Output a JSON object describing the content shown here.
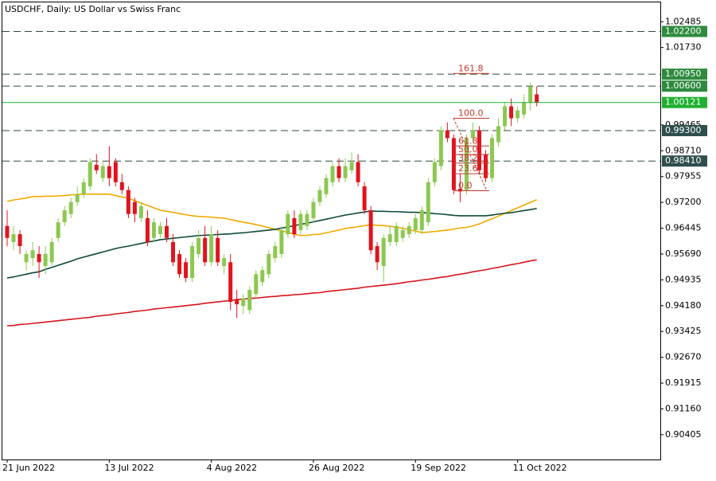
{
  "chart_data": {
    "type": "candlestick",
    "title": "USDCHF, Daily:  US Dollar vs Swiss Franc",
    "categories": [
      "21 Jun 2022",
      null,
      null,
      null,
      null,
      null,
      null,
      null,
      null,
      null,
      null,
      null,
      null,
      null,
      null,
      null,
      "13 Jul 2022",
      null,
      null,
      null,
      null,
      null,
      null,
      null,
      null,
      null,
      null,
      null,
      null,
      null,
      null,
      null,
      "4 Aug 2022",
      null,
      null,
      null,
      null,
      null,
      null,
      null,
      null,
      null,
      null,
      null,
      null,
      null,
      null,
      null,
      "26 Aug 2022",
      null,
      null,
      null,
      null,
      null,
      null,
      null,
      null,
      null,
      null,
      null,
      null,
      null,
      null,
      null,
      "19 Sep 2022",
      null,
      null,
      null,
      null,
      null,
      null,
      null,
      null,
      null,
      null,
      null,
      null,
      null,
      null,
      null,
      "11 Oct 2022",
      null,
      null,
      null
    ],
    "open": [
      0.9651,
      0.9604,
      0.9627,
      0.9545,
      0.9557,
      0.9569,
      0.9534,
      0.9545,
      0.9616,
      0.9662,
      0.9686,
      0.9721,
      0.9744,
      0.9767,
      0.983,
      0.9791,
      0.9826,
      0.9838,
      0.9779,
      0.9756,
      0.9721,
      0.9674,
      0.9674,
      0.9616,
      0.9627,
      0.9651,
      0.9604,
      0.9569,
      0.9545,
      0.9499,
      0.9569,
      0.9616,
      0.9545,
      0.9616,
      0.9534,
      0.9545,
      0.9436,
      0.9417,
      0.9405,
      0.9452,
      0.9487,
      0.951,
      0.9557,
      0.9569,
      0.9627,
      0.9674,
      0.9639,
      0.9651,
      0.9674,
      0.9721,
      0.9744,
      0.9779,
      0.9826,
      0.9791,
      0.9814,
      0.9838,
      0.9767,
      0.9697,
      0.9592,
      0.9534,
      0.9604,
      0.9604,
      0.9616,
      0.9627,
      0.9639,
      0.9639,
      0.9662,
      0.9779,
      0.9826,
      0.9931,
      0.9908,
      0.976,
      0.9756,
      0.9908,
      0.9931,
      0.9861,
      0.9791,
      0.9896,
      0.9943,
      1.0001,
      0.9966,
      0.9977,
      1.0013,
      1.0036
    ],
    "high": [
      0.9697,
      0.9651,
      0.9639,
      0.958,
      0.9604,
      0.9592,
      0.9592,
      0.9616,
      0.9674,
      0.9709,
      0.9733,
      0.9767,
      0.9791,
      0.9849,
      0.9861,
      0.9838,
      0.9884,
      0.9849,
      0.9803,
      0.9767,
      0.9733,
      0.9721,
      0.9697,
      0.9674,
      0.9662,
      0.9674,
      0.9627,
      0.958,
      0.9557,
      0.9604,
      0.9639,
      0.9651,
      0.9651,
      0.9639,
      0.9569,
      0.9569,
      0.9464,
      0.9452,
      0.9475,
      0.9522,
      0.9534,
      0.958,
      0.9604,
      0.9651,
      0.9697,
      0.9697,
      0.9697,
      0.9697,
      0.9733,
      0.9767,
      0.9803,
      0.9838,
      0.9849,
      0.9849,
      0.9866,
      0.9861,
      0.9779,
      0.9709,
      0.9604,
      0.9627,
      0.9651,
      0.9662,
      0.9651,
      0.9662,
      0.9686,
      0.9709,
      0.9791,
      0.9849,
      0.9943,
      0.9954,
      0.9919,
      0.9803,
      0.9919,
      0.9954,
      0.9943,
      0.9873,
      0.9919,
      0.9966,
      1.0013,
      1.0024,
      1.0001,
      1.0036,
      1.0071,
      1.0059
    ],
    "low": [
      0.9592,
      0.958,
      0.9569,
      0.9522,
      0.9534,
      0.9499,
      0.951,
      0.9534,
      0.9604,
      0.9651,
      0.9674,
      0.9709,
      0.9733,
      0.9756,
      0.9803,
      0.9779,
      0.9767,
      0.9767,
      0.9744,
      0.9674,
      0.9662,
      0.9662,
      0.9592,
      0.9604,
      0.9616,
      0.9604,
      0.9534,
      0.9499,
      0.9487,
      0.9487,
      0.9557,
      0.9534,
      0.9534,
      0.9534,
      0.951,
      0.9405,
      0.9382,
      0.9394,
      0.9394,
      0.944,
      0.9475,
      0.9499,
      0.9545,
      0.9557,
      0.9616,
      0.9616,
      0.9627,
      0.9639,
      0.9662,
      0.9709,
      0.9733,
      0.9767,
      0.9779,
      0.9779,
      0.9803,
      0.9767,
      0.9686,
      0.9569,
      0.9522,
      0.9487,
      0.9592,
      0.9592,
      0.9604,
      0.9616,
      0.9627,
      0.9627,
      0.9651,
      0.9767,
      0.9814,
      0.9896,
      0.9744,
      0.9721,
      0.9744,
      0.9896,
      0.9803,
      0.9779,
      0.9779,
      0.9884,
      0.9931,
      0.9943,
      0.9954,
      0.9966,
      0.9989,
      1.0001
    ],
    "close": [
      0.9616,
      0.9627,
      0.9592,
      0.9569,
      0.958,
      0.9545,
      0.9569,
      0.9604,
      0.9662,
      0.9697,
      0.9721,
      0.9744,
      0.9779,
      0.9838,
      0.9814,
      0.9826,
      0.9791,
      0.9779,
      0.9756,
      0.9686,
      0.9686,
      0.9709,
      0.9604,
      0.9662,
      0.9651,
      0.9616,
      0.9545,
      0.951,
      0.9499,
      0.9592,
      0.9616,
      0.9545,
      0.9627,
      0.9545,
      0.9557,
      0.9429,
      0.9422,
      0.944,
      0.9464,
      0.951,
      0.9522,
      0.9569,
      0.9592,
      0.9639,
      0.9686,
      0.9627,
      0.9686,
      0.9686,
      0.9721,
      0.9756,
      0.9791,
      0.9826,
      0.9791,
      0.9826,
      0.9838,
      0.9779,
      0.9697,
      0.958,
      0.9545,
      0.9616,
      0.9627,
      0.9651,
      0.9639,
      0.9651,
      0.9674,
      0.9697,
      0.9779,
      0.9838,
      0.9931,
      0.9908,
      0.9756,
      0.9752,
      0.9908,
      0.9931,
      0.9814,
      0.9791,
      0.9908,
      0.9943,
      1.0001,
      0.9966,
      0.9989,
      1.0013,
      1.0059,
      1.0012
    ],
    "up_color": "#8cc850",
    "down_color": "#e0141e",
    "lines": [
      {
        "color": "#f2a900",
        "values": [
          0.9723,
          0.9727,
          0.973,
          0.9733,
          0.9737,
          0.9737,
          0.9738,
          0.9738,
          0.9739,
          0.974,
          0.9742,
          0.9743,
          0.9744,
          0.9744,
          0.9744,
          0.9744,
          0.9744,
          0.974,
          0.9736,
          0.9732,
          0.9725,
          0.9718,
          0.9711,
          0.9704,
          0.9697,
          0.9694,
          0.9691,
          0.9687,
          0.9684,
          0.9681,
          0.9679,
          0.9678,
          0.9677,
          0.9675,
          0.9674,
          0.967,
          0.9666,
          0.9662,
          0.9659,
          0.9655,
          0.9651,
          0.9646,
          0.9641,
          0.9637,
          0.9632,
          0.9627,
          0.9623,
          0.9624,
          0.9626,
          0.9627,
          0.9631,
          0.9635,
          0.9639,
          0.9644,
          0.9646,
          0.9649,
          0.9652,
          0.9655,
          0.9653,
          0.9652,
          0.965,
          0.9648,
          0.9644,
          0.964,
          0.9636,
          0.9632,
          0.9633,
          0.9635,
          0.9637,
          0.9639,
          0.9642,
          0.9645,
          0.9647,
          0.9651,
          0.9657,
          0.9665,
          0.9672,
          0.968,
          0.9688,
          0.9696,
          0.9704,
          0.9712,
          0.972,
          0.9728
        ]
      },
      {
        "color": "#0f4a3a",
        "values": [
          0.9499,
          0.9502,
          0.9506,
          0.951,
          0.9514,
          0.9517,
          0.9524,
          0.953,
          0.9536,
          0.9542,
          0.9548,
          0.9555,
          0.956,
          0.9565,
          0.957,
          0.9575,
          0.958,
          0.9585,
          0.9589,
          0.9592,
          0.9596,
          0.96,
          0.9604,
          0.9607,
          0.9611,
          0.9613,
          0.9615,
          0.9617,
          0.9619,
          0.9621,
          0.9623,
          0.9624,
          0.9625,
          0.9626,
          0.9627,
          0.9628,
          0.963,
          0.9631,
          0.9633,
          0.9635,
          0.9637,
          0.9639,
          0.9641,
          0.9645,
          0.9648,
          0.9652,
          0.9656,
          0.9659,
          0.9663,
          0.9667,
          0.9671,
          0.9675,
          0.9679,
          0.9683,
          0.9686,
          0.9689,
          0.9692,
          0.9695,
          0.9694,
          0.9694,
          0.9693,
          0.9693,
          0.9692,
          0.9691,
          0.9691,
          0.969,
          0.9689,
          0.9687,
          0.9686,
          0.9684,
          0.9682,
          0.9681,
          0.9681,
          0.9681,
          0.9681,
          0.9681,
          0.9683,
          0.9686,
          0.9688,
          0.969,
          0.9693,
          0.9696,
          0.9699,
          0.9702
        ]
      },
      {
        "color": "#d4141c",
        "values": [
          0.9359,
          0.936,
          0.9363,
          0.9364,
          0.9366,
          0.9368,
          0.937,
          0.9372,
          0.9374,
          0.9376,
          0.9378,
          0.938,
          0.9382,
          0.9384,
          0.9387,
          0.9389,
          0.9391,
          0.9394,
          0.9396,
          0.9398,
          0.9401,
          0.9403,
          0.9405,
          0.9408,
          0.941,
          0.9412,
          0.9414,
          0.9416,
          0.9418,
          0.942,
          0.9422,
          0.9425,
          0.9427,
          0.9429,
          0.9431,
          0.9433,
          0.9436,
          0.9437,
          0.9439,
          0.944,
          0.9442,
          0.9444,
          0.9445,
          0.9447,
          0.9448,
          0.945,
          0.9451,
          0.9453,
          0.9455,
          0.9456,
          0.9459,
          0.9461,
          0.9463,
          0.9465,
          0.9467,
          0.9469,
          0.9472,
          0.9474,
          0.9476,
          0.9478,
          0.948,
          0.9482,
          0.9485,
          0.9488,
          0.949,
          0.9493,
          0.9495,
          0.9498,
          0.9501,
          0.9503,
          0.9507,
          0.951,
          0.9513,
          0.9517,
          0.952,
          0.9523,
          0.9527,
          0.953,
          0.9534,
          0.9538,
          0.9541,
          0.9545,
          0.9549,
          0.9552
        ]
      }
    ],
    "ylim": [
      0.8968,
      1.0305
    ],
    "yticks": [
      1.02485,
      {
        "value": 1.0173,
        "label": "1.01730"
      },
      0.99465,
      {
        "value": 0.9871,
        "label": "0.98710"
      },
      0.97955,
      {
        "value": 0.972,
        "label": "0.97200"
      },
      0.96445,
      {
        "value": 0.9569,
        "label": "0.95690"
      },
      0.94935,
      {
        "value": 0.9418,
        "label": "0.94180"
      },
      0.93425,
      {
        "value": 0.9267,
        "label": "0.92670"
      },
      0.91915,
      {
        "value": 0.9116,
        "label": "0.91160"
      },
      0.90405
    ],
    "levels": [
      {
        "value": 1.022,
        "label": "1.02200",
        "color": "#2e8b3e"
      },
      {
        "value": 1.0095,
        "label": "1.00950",
        "color": "#2e8b3e"
      },
      {
        "value": 1.006,
        "label": "1.00600",
        "color": "#2e8b3e"
      },
      {
        "value": 0.993,
        "label": "0.99300",
        "color": "#2f4f4f"
      },
      {
        "value": 0.9841,
        "label": "0.98410",
        "color": "#2f4f4f"
      }
    ],
    "current_price": {
      "value": 1.00121,
      "label": "1.00121",
      "color": "#20b030"
    },
    "fibonacci": {
      "low": 0.9754,
      "high": 0.9966,
      "color": "#c0392b",
      "levels": [
        {
          "value": 0,
          "label": "0.0"
        },
        23.6,
        38.2,
        {
          "value": 50,
          "label": "50.0"
        },
        61.8,
        {
          "value": 100,
          "label": "100.0"
        },
        161.8
      ]
    }
  }
}
